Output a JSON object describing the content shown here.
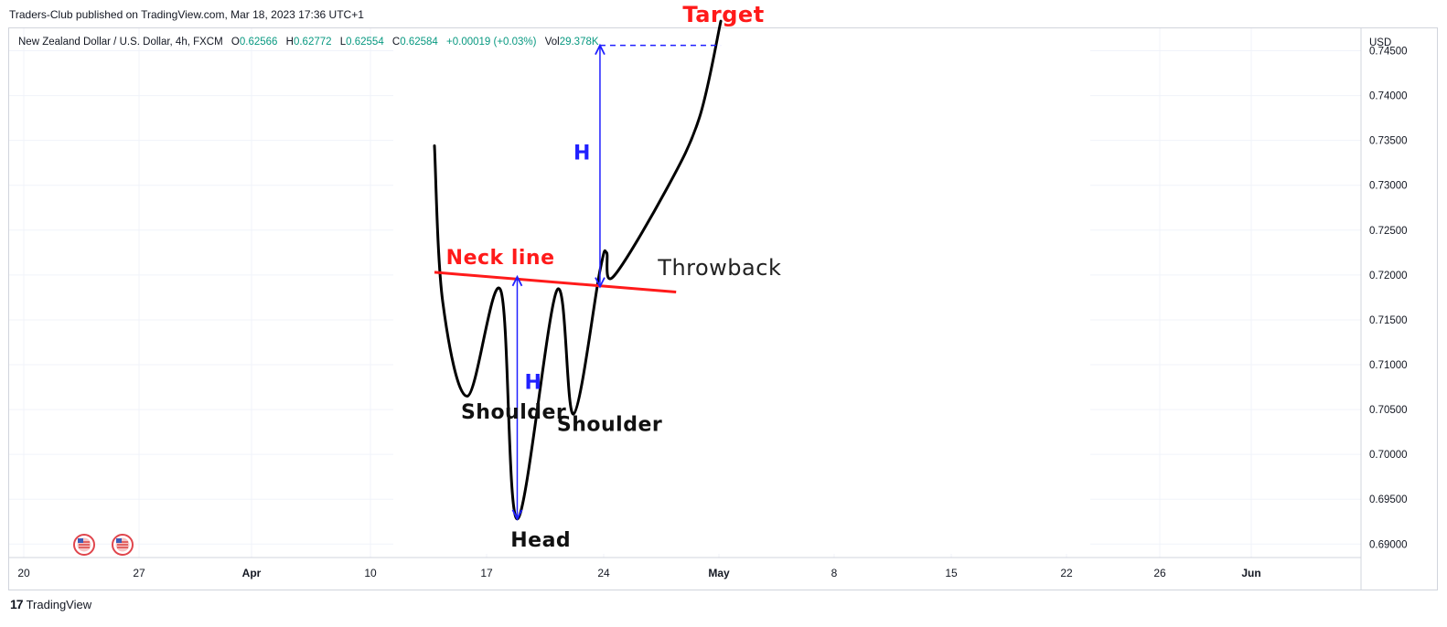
{
  "publisher_line": "Traders-Club published on TradingView.com, Mar 18, 2023 17:36 UTC+1",
  "legend": {
    "symbol": "New Zealand Dollar / U.S. Dollar, 4h, FXCM",
    "open_label": "O",
    "open": "0.62566",
    "high_label": "H",
    "high": "0.62772",
    "low_label": "L",
    "low": "0.62554",
    "close_label": "C",
    "close": "0.62584",
    "change": "+0.00019 (+0.03%)",
    "vol_label": "Vol",
    "vol": "29.378K"
  },
  "brand": {
    "name": "TradingView",
    "logo_icon": "tradingview-logo-icon"
  },
  "colors": {
    "grid": "#f0f3fa",
    "neck": "#ff1a1a",
    "arrow": "#2020ff",
    "curve": "#000000",
    "legend_value": "#089981",
    "target": "#ff1a1a"
  },
  "chart_data": {
    "type": "line",
    "y_axis": {
      "unit": "USD",
      "ticks": [
        "0.74500",
        "0.74000",
        "0.73500",
        "0.73000",
        "0.72500",
        "0.72000",
        "0.71500",
        "0.71000",
        "0.70500",
        "0.70000",
        "0.69500",
        "0.69000"
      ],
      "range": [
        0.6885,
        0.7475
      ]
    },
    "x_axis": {
      "ticks": [
        {
          "label": "20",
          "bold": false
        },
        {
          "label": "27",
          "bold": false
        },
        {
          "label": "Apr",
          "bold": true
        },
        {
          "label": "10",
          "bold": false
        },
        {
          "label": "17",
          "bold": false
        },
        {
          "label": "24",
          "bold": false
        },
        {
          "label": "May",
          "bold": true
        },
        {
          "label": "8",
          "bold": false
        },
        {
          "label": "15",
          "bold": false
        },
        {
          "label": "22",
          "bold": false
        },
        {
          "label": "26",
          "bold": false
        },
        {
          "label": "Jun",
          "bold": true
        }
      ]
    },
    "pattern_curve": [
      {
        "x": 0.0,
        "y": 0.7344
      },
      {
        "x": 0.5,
        "y": 0.717
      },
      {
        "x": 2.0,
        "y": 0.7065
      },
      {
        "x": 4.0,
        "y": 0.7183
      },
      {
        "x": 5.0,
        "y": 0.6928
      },
      {
        "x": 7.4,
        "y": 0.7183
      },
      {
        "x": 8.4,
        "y": 0.7045
      },
      {
        "x": 10.0,
        "y": 0.7205
      },
      {
        "x": 10.4,
        "y": 0.7225
      },
      {
        "x": 10.8,
        "y": 0.7198
      },
      {
        "x": 14.0,
        "y": 0.7295
      },
      {
        "x": 16.0,
        "y": 0.7375
      },
      {
        "x": 17.3,
        "y": 0.7483
      }
    ],
    "neck_line": {
      "start": {
        "x": 0.0,
        "y": 0.7203
      },
      "end": {
        "x": 14.6,
        "y": 0.7181
      }
    },
    "target_line": {
      "x_start": 10.0,
      "x_end": 17.3,
      "y": 0.7456
    },
    "measures": [
      {
        "label": "H",
        "x": 5.0,
        "y_from": 0.6928,
        "y_to": 0.7198
      },
      {
        "label": "H",
        "x": 10.0,
        "y_from": 0.7187,
        "y_to": 0.7456
      }
    ],
    "annotations": [
      {
        "text": "Neck line",
        "x": 0.7,
        "y": 0.7212
      },
      {
        "text": "Shoulder",
        "x": 1.6,
        "y": 0.704
      },
      {
        "text": "Head",
        "x": 4.6,
        "y": 0.6897
      },
      {
        "text": "Shoulder",
        "x": 7.4,
        "y": 0.7026
      },
      {
        "text": "Throwback",
        "x": 13.5,
        "y": 0.72
      },
      {
        "text": "Target",
        "x": 15.0,
        "y": 0.7482
      }
    ],
    "events": [
      {
        "icon": "us-flag-icon",
        "x_tick": 0.5
      },
      {
        "icon": "us-flag-icon",
        "x_tick": 0.9
      }
    ]
  }
}
